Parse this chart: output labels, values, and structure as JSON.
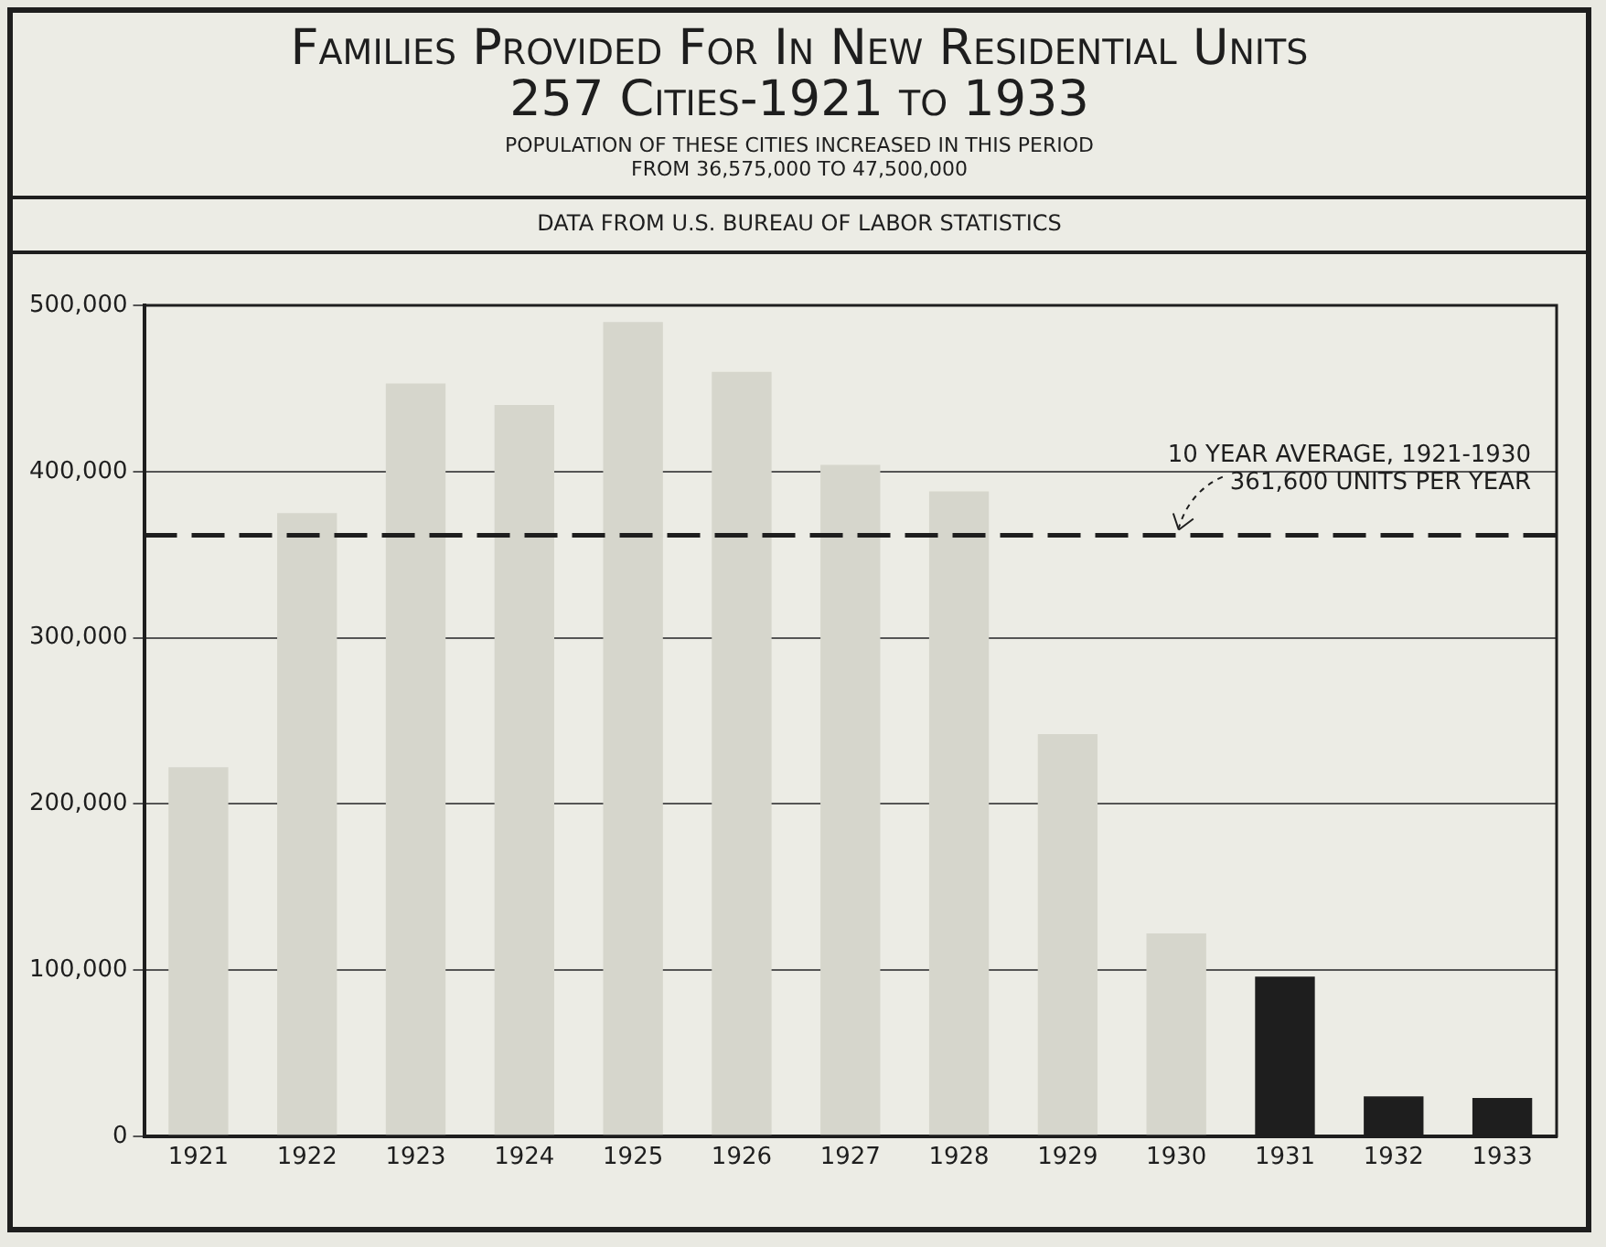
{
  "chart_data": {
    "type": "bar",
    "title": "Families Provided For In New Residential Units\n257 Cities-1921 to 1933",
    "subtitle": "POPULATION OF THESE CITIES INCREASED IN THIS PERIOD\nFROM 36,575,000 TO 47,500,000",
    "annotations": [
      "DATA FROM U.S. BUREAU OF LABOR STATISTICS"
    ],
    "categories": [
      "1921",
      "1922",
      "1923",
      "1924",
      "1925",
      "1926",
      "1927",
      "1928",
      "1929",
      "1930",
      "1931",
      "1932",
      "1933"
    ],
    "values": [
      222000,
      375000,
      453000,
      440000,
      490000,
      460000,
      404000,
      388000,
      242000,
      122000,
      96000,
      24000,
      23000
    ],
    "colors": [
      "#d6d6cc",
      "#d6d6cc",
      "#d6d6cc",
      "#d6d6cc",
      "#d6d6cc",
      "#d6d6cc",
      "#d6d6cc",
      "#d6d6cc",
      "#d6d6cc",
      "#d6d6cc",
      "#1e1e1e",
      "#1e1e1e",
      "#1e1e1e"
    ],
    "ylim": [
      0,
      500000
    ],
    "yticks": [
      {
        "value": 0,
        "label": "0"
      },
      {
        "value": 100000,
        "label": "100,000"
      },
      {
        "value": 200000,
        "label": "200,000"
      },
      {
        "value": 300000,
        "label": "300,000"
      },
      {
        "value": 400000,
        "label": "400,000"
      },
      {
        "value": 500000,
        "label": "500,000"
      }
    ],
    "grid": "y",
    "legend": false,
    "ref_lines": [
      {
        "axis": "y",
        "value": 361600,
        "label": "10 YEAR AVERAGE, 1921-1930\n361,600 UNITS PER YEAR",
        "line_style": "dashed",
        "color": "#1e1e1e"
      }
    ]
  }
}
